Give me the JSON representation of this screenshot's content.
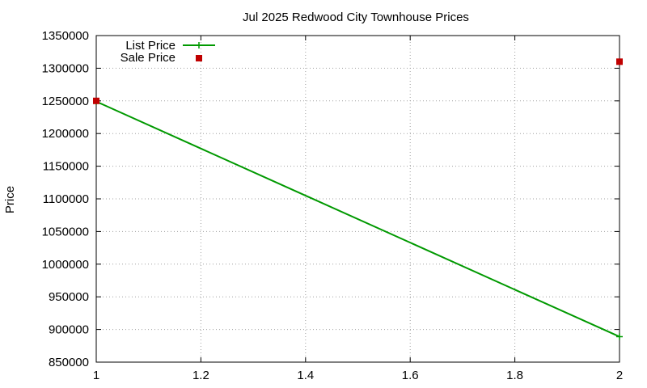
{
  "chart_data": {
    "type": "line",
    "title": "Jul 2025 Redwood City Townhouse Prices",
    "xlabel": "",
    "ylabel": "Price",
    "xlim": [
      1,
      2
    ],
    "ylim": [
      850000,
      1350000
    ],
    "x_ticks": [
      "1",
      "1.2",
      "1.4",
      "1.6",
      "1.8",
      "2"
    ],
    "y_ticks": [
      "850000",
      "900000",
      "950000",
      "1000000",
      "1050000",
      "1100000",
      "1150000",
      "1200000",
      "1250000",
      "1300000",
      "1350000"
    ],
    "grid": true,
    "legend_position": "top-left",
    "series": [
      {
        "name": "List Price",
        "style": "line+cross",
        "color": "#009900",
        "x": [
          1,
          2
        ],
        "y": [
          1249000,
          889000
        ]
      },
      {
        "name": "Sale Price",
        "style": "square-points",
        "color": "#c00000",
        "x": [
          1,
          2
        ],
        "y": [
          1250000,
          1310000
        ]
      }
    ]
  }
}
